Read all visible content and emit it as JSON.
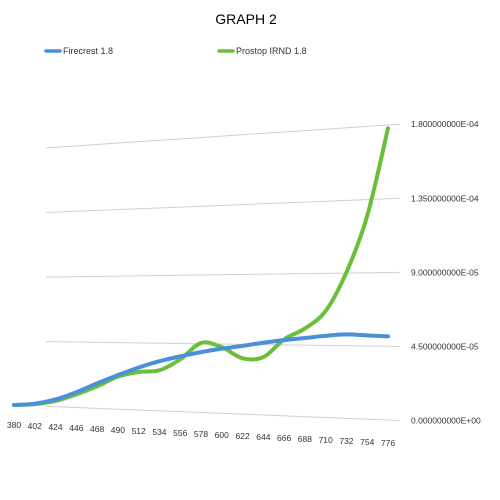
{
  "chart_data": {
    "type": "line",
    "title": "GRAPH 2",
    "xlabel": "",
    "ylabel": "",
    "legend_position": "top",
    "grid": true,
    "x_ticks": [
      "380",
      "402",
      "424",
      "446",
      "468",
      "490",
      "512",
      "534",
      "556",
      "578",
      "600",
      "622",
      "644",
      "666",
      "688",
      "710",
      "732",
      "754",
      "776"
    ],
    "y_ticks": [
      "0.000000000E+00",
      "4.500000000E-05",
      "9.000000000E-05",
      "1.350000000E-04",
      "1.800000000E-04"
    ],
    "ylim": [
      0,
      0.00018
    ],
    "xlim": [
      380,
      776
    ],
    "series": [
      {
        "name": "Firecrest 1.8",
        "color": "#4a90d9",
        "x": [
          380,
          402,
          424,
          446,
          468,
          490,
          512,
          534,
          556,
          578,
          600,
          622,
          644,
          666,
          688,
          710,
          732,
          754,
          776
        ],
        "values": [
          0.0,
          1.5e-06,
          5e-06,
          1.05e-05,
          1.7e-05,
          2.3e-05,
          2.85e-05,
          3.3e-05,
          3.65e-05,
          3.95e-05,
          4.2e-05,
          4.4e-05,
          4.62e-05,
          4.8e-05,
          4.95e-05,
          5.1e-05,
          5.2e-05,
          5.15e-05,
          5.1e-05
        ]
      },
      {
        "name": "Prostop IRND 1.8",
        "color": "#6abf3a",
        "x": [
          380,
          402,
          424,
          446,
          468,
          490,
          512,
          534,
          556,
          578,
          600,
          622,
          644,
          666,
          688,
          710,
          732,
          754,
          776
        ],
        "values": [
          0.0,
          1.2e-06,
          4e-06,
          9e-06,
          1.5e-05,
          2.2e-05,
          2.55e-05,
          2.7e-05,
          3.45e-05,
          4.55e-05,
          4.3e-05,
          3.6e-05,
          3.7e-05,
          4.85e-05,
          5.55e-05,
          6.65e-05,
          9.05e-05,
          0.000125,
          0.000178
        ]
      }
    ]
  }
}
